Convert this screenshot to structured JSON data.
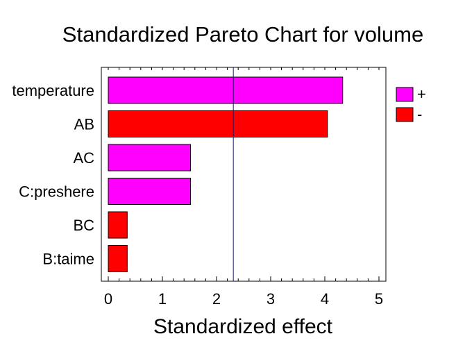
{
  "chart_data": {
    "type": "bar",
    "orientation": "horizontal",
    "title": "Standardized Pareto Chart for volume",
    "xlabel": "Standardized effect",
    "ylabel": "",
    "categories": [
      "temperature",
      "AB",
      "AC",
      "C:preshere",
      "BC",
      "B:taime"
    ],
    "values": [
      4.33,
      4.05,
      1.52,
      1.52,
      0.35,
      0.35
    ],
    "signs": [
      "+",
      "-",
      "+",
      "+",
      "-",
      "-"
    ],
    "xlim": [
      0,
      5
    ],
    "xticks": [
      "0",
      "1",
      "2",
      "3",
      "4",
      "5"
    ],
    "reference_line": 2.31,
    "legend": {
      "placement": "right",
      "entries": [
        {
          "label": "+",
          "color": "#ff00ff"
        },
        {
          "label": "-",
          "color": "#ff0000"
        }
      ]
    },
    "colors": {
      "positive": "#ff00ff",
      "negative": "#ff0000",
      "refline": "#1a1a66"
    }
  }
}
